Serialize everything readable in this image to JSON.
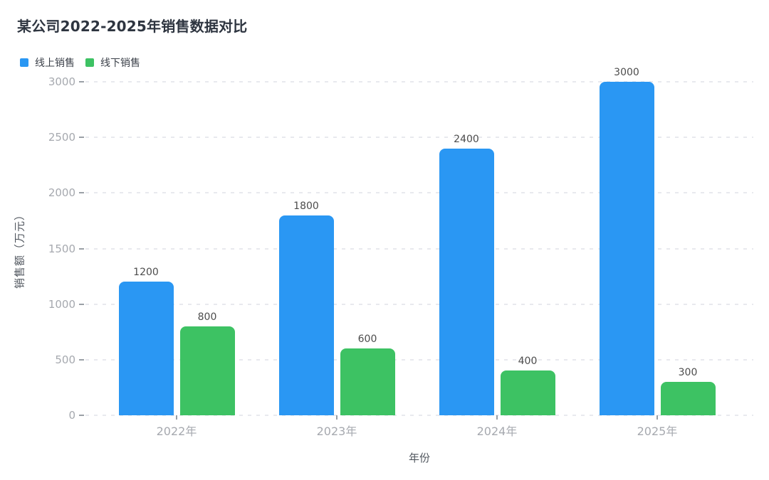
{
  "title": "某公司2022-2025年销售数据对比",
  "chart_data": {
    "type": "bar",
    "title": "某公司2022-2025年销售数据对比",
    "categories": [
      "2022年",
      "2023年",
      "2024年",
      "2025年"
    ],
    "series": [
      {
        "name": "线上销售",
        "color": "#2a97f3",
        "values": [
          1200,
          1800,
          2400,
          3000
        ]
      },
      {
        "name": "线下销售",
        "color": "#3dc263",
        "values": [
          800,
          600,
          400,
          300
        ]
      }
    ],
    "xlabel": "年份",
    "ylabel": "销售额（万元）",
    "yticks": [
      0,
      500,
      1000,
      1500,
      2000,
      2500,
      3000
    ],
    "ylim": [
      0,
      3000
    ],
    "grid": "horizontal-dashed",
    "legend_position": "top-left",
    "bar_value_labels": true
  },
  "colors": {
    "online_blue": "#2a97f3",
    "offline_green": "#3dc263",
    "title_text": "#2e3540",
    "tick_text": "#a6a9af",
    "axis_title_text": "#50565e",
    "value_label_text": "#4c4c4c",
    "gridline": "#e8e9ee",
    "tick_mark": "#9aa0a6",
    "background": "#ffffff"
  }
}
